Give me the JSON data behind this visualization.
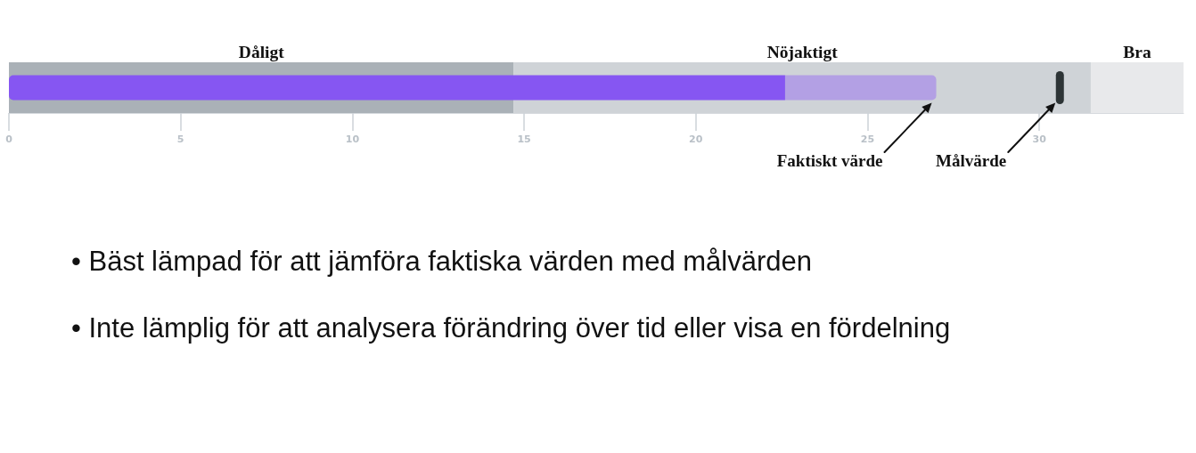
{
  "chart_data": {
    "type": "bar",
    "orientation": "horizontal",
    "stacked": true,
    "categories": [
      null
    ],
    "series": [
      {
        "color": "#8656f2",
        "values": [
          22.6
        ]
      },
      {
        "color": "#b3a0e4",
        "values": [
          4.4
        ]
      }
    ],
    "xlim": [
      0,
      34.2
    ],
    "xticks": [
      0,
      5,
      10,
      15,
      20,
      25,
      30
    ],
    "bands": [
      {
        "axis": "x",
        "from": 0,
        "to": 14.7,
        "label": "Dåligt",
        "color": "#aab1b7"
      },
      {
        "axis": "x",
        "from": 14.7,
        "to": 31.5,
        "label": "Nöjaktigt",
        "color": "#cfd3d7"
      },
      {
        "axis": "x",
        "from": 31.5,
        "to": 34.2,
        "label": "Bra",
        "color": "#e8e9eb"
      }
    ],
    "ref_lines": [
      {
        "axis": "x",
        "value": 30.6,
        "label": "Målvärde",
        "color": "#2d3436"
      }
    ],
    "annotations": [
      "Faktiskt värde",
      "• Bäst lämpad för att jämföra faktiska värden med målvärden",
      "• Inte lämplig för att analysera förändring över tid eller visa en fördelning"
    ]
  }
}
